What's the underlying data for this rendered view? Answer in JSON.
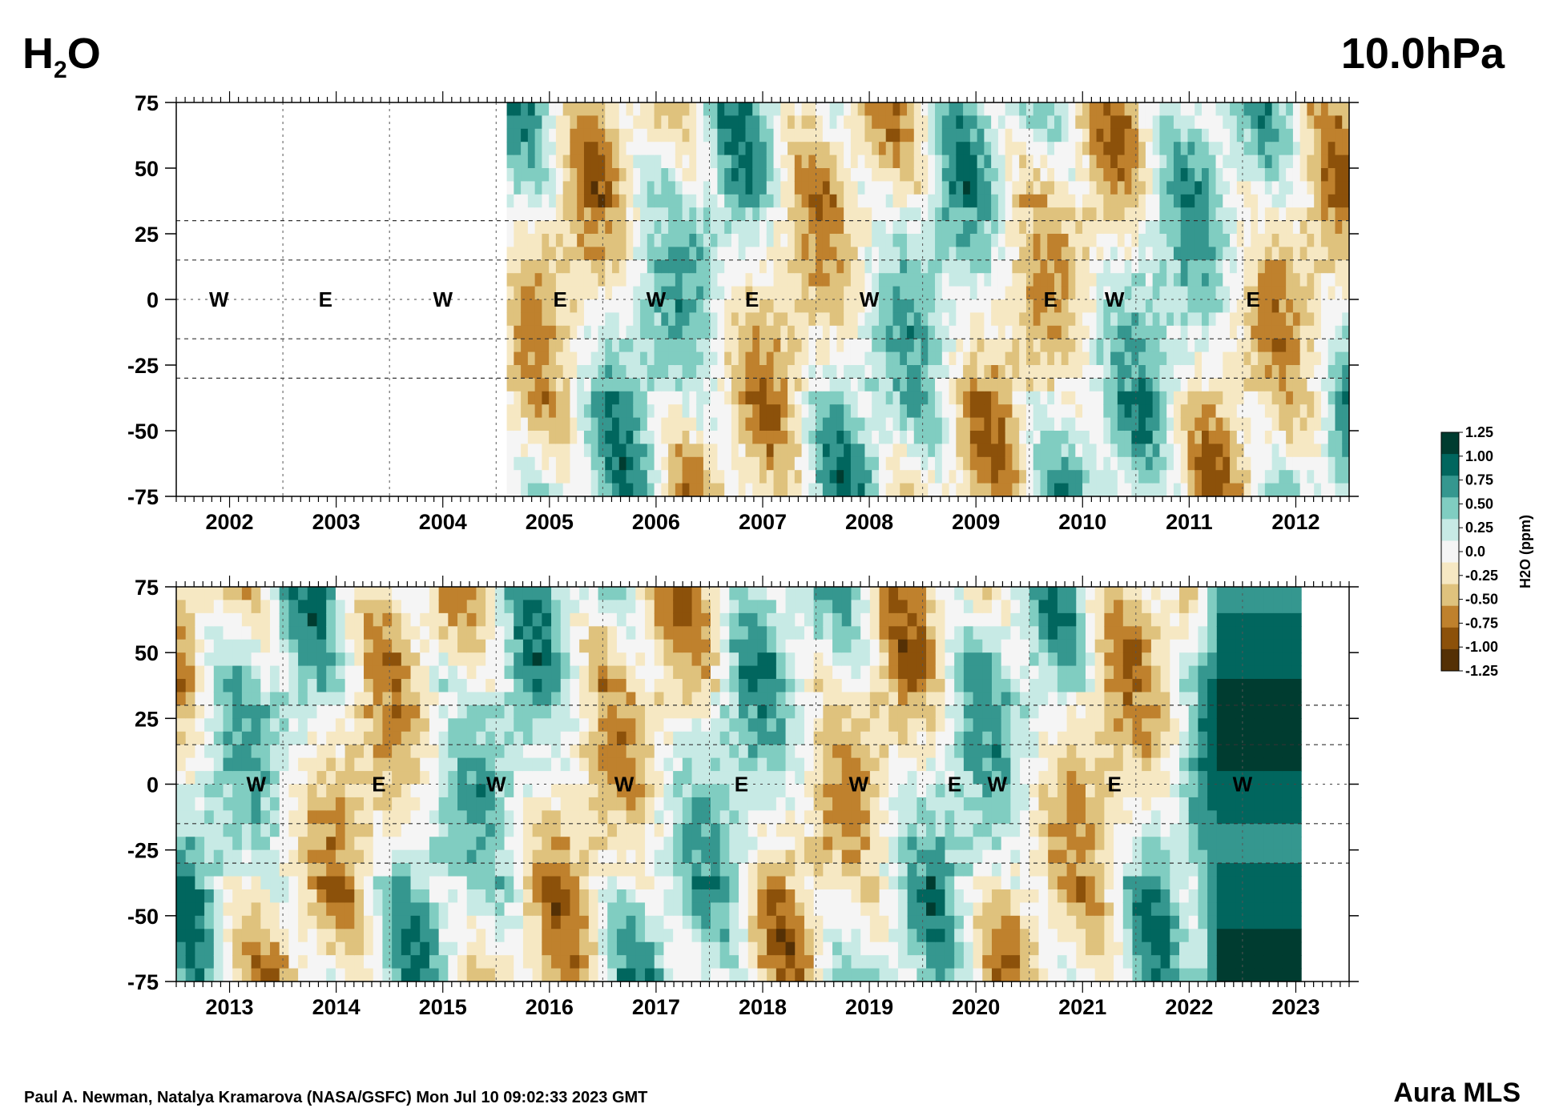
{
  "header": {
    "title_main": "H",
    "title_sub": "2",
    "title_tail": "O",
    "pressure_level": "10.0hPa"
  },
  "footer": {
    "credit": "Paul A. Newman, Natalya Kramarova (NASA/GSFC) Mon Jul 10 09:02:33 2023 GMT",
    "instrument": "Aura MLS"
  },
  "chart_data": [
    {
      "type": "heatmap",
      "panel": "top",
      "x_unit": "year",
      "ylim": [
        -75,
        75
      ],
      "yticks": [
        "75",
        "50",
        "25",
        "0",
        "-25",
        "-50",
        "-75"
      ],
      "ytick_values": [
        75,
        50,
        25,
        0,
        -25,
        -50,
        -75
      ],
      "year_labels": [
        "2002",
        "2003",
        "2004",
        "2005",
        "2006",
        "2007",
        "2008",
        "2009",
        "2010",
        "2011",
        "2012"
      ],
      "xlim": [
        2001.5,
        2012.5
      ],
      "data_start": 2004.6,
      "data_end": 2012.5,
      "qbo_labels": [
        {
          "text": "W",
          "x": 2001.9
        },
        {
          "text": "E",
          "x": 2002.9
        },
        {
          "text": "W",
          "x": 2004.0
        },
        {
          "text": "E",
          "x": 2005.1
        },
        {
          "text": "W",
          "x": 2006.0
        },
        {
          "text": "E",
          "x": 2006.9
        },
        {
          "text": "W",
          "x": 2008.0
        },
        {
          "text": "E",
          "x": 2009.7
        },
        {
          "text": "W",
          "x": 2010.3
        },
        {
          "text": "E",
          "x": 2011.6
        }
      ],
      "dashed_latitudes": [
        30,
        15,
        -15,
        -30
      ],
      "grid": "dotted"
    },
    {
      "type": "heatmap",
      "panel": "bottom",
      "x_unit": "year",
      "ylim": [
        -75,
        75
      ],
      "yticks": [
        "75",
        "50",
        "25",
        "0",
        "-25",
        "-50",
        "-75"
      ],
      "ytick_values": [
        75,
        50,
        25,
        0,
        -25,
        -50,
        -75
      ],
      "year_labels": [
        "2013",
        "2014",
        "2015",
        "2016",
        "2017",
        "2018",
        "2019",
        "2020",
        "2021",
        "2022",
        "2023"
      ],
      "xlim": [
        2012.5,
        2023.5
      ],
      "data_start": 2012.5,
      "data_end": 2023.05,
      "qbo_labels": [
        {
          "text": "W",
          "x": 2013.25
        },
        {
          "text": "E",
          "x": 2014.4
        },
        {
          "text": "W",
          "x": 2015.5
        },
        {
          "text": "W",
          "x": 2016.7
        },
        {
          "text": "E",
          "x": 2017.8
        },
        {
          "text": "W",
          "x": 2018.9
        },
        {
          "text": "E",
          "x": 2019.8
        },
        {
          "text": "W",
          "x": 2020.2
        },
        {
          "text": "E",
          "x": 2021.3
        },
        {
          "text": "W",
          "x": 2022.5
        }
      ],
      "dashed_latitudes": [
        30,
        15,
        -15,
        -30
      ],
      "grid": "dotted"
    }
  ],
  "colorbar": {
    "label": "H2O (ppm)",
    "levels": [
      "1.25",
      "1.00",
      "0.75",
      "0.50",
      "0.25",
      "0.0",
      "-0.25",
      "-0.50",
      "-0.75",
      "-1.00",
      "-1.25"
    ],
    "level_values": [
      1.25,
      1.0,
      0.75,
      0.5,
      0.25,
      0.0,
      -0.25,
      -0.5,
      -0.75,
      -1.0,
      -1.25
    ],
    "colors": [
      "#003c30",
      "#01665e",
      "#35978f",
      "#80cdc1",
      "#c7eae5",
      "#f5f5f5",
      "#f6e8c3",
      "#dfc27d",
      "#bf812d",
      "#8c510a",
      "#543005"
    ]
  }
}
